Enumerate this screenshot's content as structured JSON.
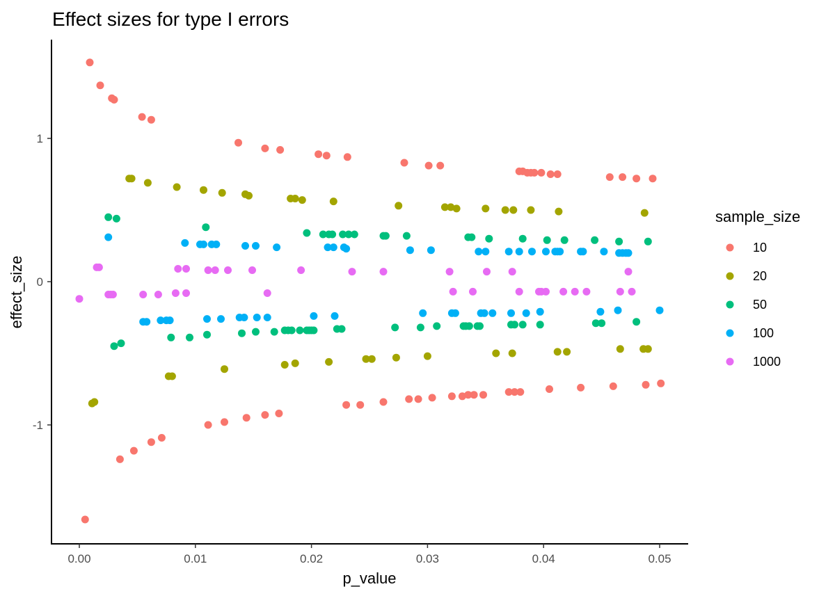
{
  "chart_data": {
    "type": "scatter",
    "title": "Effect sizes for type I errors",
    "xlabel": "p_value",
    "ylabel": "effect_size",
    "xlim": [
      0,
      0.05
    ],
    "ylim": [
      -1.6,
      1.55
    ],
    "x_ticks": [
      0.0,
      0.01,
      0.02,
      0.03,
      0.04,
      0.05
    ],
    "x_tick_labels": [
      "0.00",
      "0.01",
      "0.02",
      "0.03",
      "0.04",
      "0.05"
    ],
    "y_ticks": [
      -1,
      0,
      1
    ],
    "y_tick_labels": [
      "-1",
      "0",
      "1"
    ],
    "grid": false,
    "legend": {
      "title": "sample_size",
      "position": "right"
    },
    "series": [
      {
        "name": "10",
        "color": "#F8766D",
        "points": [
          [
            0.0009,
            1.53
          ],
          [
            0.0018,
            1.37
          ],
          [
            0.0028,
            1.28
          ],
          [
            0.003,
            1.27
          ],
          [
            0.0054,
            1.15
          ],
          [
            0.0062,
            1.13
          ],
          [
            0.0137,
            0.97
          ],
          [
            0.016,
            0.93
          ],
          [
            0.0173,
            0.92
          ],
          [
            0.0206,
            0.89
          ],
          [
            0.0213,
            0.88
          ],
          [
            0.0231,
            0.87
          ],
          [
            0.028,
            0.83
          ],
          [
            0.0301,
            0.81
          ],
          [
            0.0311,
            0.81
          ],
          [
            0.0379,
            0.77
          ],
          [
            0.0382,
            0.77
          ],
          [
            0.0386,
            0.76
          ],
          [
            0.0389,
            0.76
          ],
          [
            0.0392,
            0.76
          ],
          [
            0.0398,
            0.76
          ],
          [
            0.0406,
            0.75
          ],
          [
            0.0412,
            0.75
          ],
          [
            0.0457,
            0.73
          ],
          [
            0.0468,
            0.73
          ],
          [
            0.048,
            0.72
          ],
          [
            0.0494,
            0.72
          ],
          [
            0.0005,
            -1.66
          ],
          [
            0.0035,
            -1.24
          ],
          [
            0.0047,
            -1.18
          ],
          [
            0.0062,
            -1.12
          ],
          [
            0.0071,
            -1.09
          ],
          [
            0.0111,
            -1.0
          ],
          [
            0.0125,
            -0.98
          ],
          [
            0.0144,
            -0.95
          ],
          [
            0.016,
            -0.93
          ],
          [
            0.0172,
            -0.92
          ],
          [
            0.023,
            -0.86
          ],
          [
            0.0242,
            -0.86
          ],
          [
            0.0262,
            -0.84
          ],
          [
            0.0284,
            -0.82
          ],
          [
            0.0292,
            -0.82
          ],
          [
            0.0304,
            -0.81
          ],
          [
            0.0321,
            -0.8
          ],
          [
            0.033,
            -0.8
          ],
          [
            0.0335,
            -0.79
          ],
          [
            0.034,
            -0.79
          ],
          [
            0.0348,
            -0.79
          ],
          [
            0.037,
            -0.77
          ],
          [
            0.0375,
            -0.77
          ],
          [
            0.038,
            -0.77
          ],
          [
            0.0405,
            -0.75
          ],
          [
            0.0432,
            -0.74
          ],
          [
            0.046,
            -0.73
          ],
          [
            0.0488,
            -0.72
          ],
          [
            0.0501,
            -0.71
          ]
        ]
      },
      {
        "name": "20",
        "color": "#A3A500",
        "points": [
          [
            0.0043,
            0.72
          ],
          [
            0.0045,
            0.72
          ],
          [
            0.0059,
            0.69
          ],
          [
            0.0084,
            0.66
          ],
          [
            0.0107,
            0.64
          ],
          [
            0.0123,
            0.62
          ],
          [
            0.0143,
            0.61
          ],
          [
            0.0146,
            0.6
          ],
          [
            0.0182,
            0.58
          ],
          [
            0.0186,
            0.58
          ],
          [
            0.0192,
            0.57
          ],
          [
            0.0219,
            0.56
          ],
          [
            0.0275,
            0.53
          ],
          [
            0.0315,
            0.52
          ],
          [
            0.032,
            0.52
          ],
          [
            0.0325,
            0.51
          ],
          [
            0.035,
            0.51
          ],
          [
            0.0367,
            0.5
          ],
          [
            0.0374,
            0.5
          ],
          [
            0.0389,
            0.5
          ],
          [
            0.0413,
            0.49
          ],
          [
            0.0487,
            0.48
          ],
          [
            0.0011,
            -0.85
          ],
          [
            0.0013,
            -0.84
          ],
          [
            0.0077,
            -0.66
          ],
          [
            0.008,
            -0.66
          ],
          [
            0.0125,
            -0.61
          ],
          [
            0.0177,
            -0.58
          ],
          [
            0.0186,
            -0.57
          ],
          [
            0.0215,
            -0.56
          ],
          [
            0.0247,
            -0.54
          ],
          [
            0.0252,
            -0.54
          ],
          [
            0.0273,
            -0.53
          ],
          [
            0.03,
            -0.52
          ],
          [
            0.0359,
            -0.5
          ],
          [
            0.0373,
            -0.5
          ],
          [
            0.0412,
            -0.49
          ],
          [
            0.042,
            -0.49
          ],
          [
            0.0466,
            -0.47
          ],
          [
            0.0486,
            -0.47
          ],
          [
            0.049,
            -0.47
          ]
        ]
      },
      {
        "name": "50",
        "color": "#00BF7D",
        "points": [
          [
            0.0025,
            0.45
          ],
          [
            0.0032,
            0.44
          ],
          [
            0.0109,
            0.38
          ],
          [
            0.0196,
            0.34
          ],
          [
            0.021,
            0.33
          ],
          [
            0.0215,
            0.33
          ],
          [
            0.0218,
            0.33
          ],
          [
            0.0227,
            0.33
          ],
          [
            0.0232,
            0.33
          ],
          [
            0.0237,
            0.33
          ],
          [
            0.0262,
            0.32
          ],
          [
            0.0264,
            0.32
          ],
          [
            0.0282,
            0.32
          ],
          [
            0.0335,
            0.31
          ],
          [
            0.0338,
            0.31
          ],
          [
            0.0353,
            0.3
          ],
          [
            0.0382,
            0.3
          ],
          [
            0.0403,
            0.29
          ],
          [
            0.0418,
            0.29
          ],
          [
            0.0444,
            0.29
          ],
          [
            0.0465,
            0.28
          ],
          [
            0.049,
            0.28
          ],
          [
            0.003,
            -0.45
          ],
          [
            0.0036,
            -0.43
          ],
          [
            0.0079,
            -0.39
          ],
          [
            0.0095,
            -0.39
          ],
          [
            0.011,
            -0.37
          ],
          [
            0.014,
            -0.36
          ],
          [
            0.0152,
            -0.35
          ],
          [
            0.0168,
            -0.35
          ],
          [
            0.0177,
            -0.34
          ],
          [
            0.018,
            -0.34
          ],
          [
            0.0183,
            -0.34
          ],
          [
            0.019,
            -0.34
          ],
          [
            0.0196,
            -0.34
          ],
          [
            0.0198,
            -0.34
          ],
          [
            0.02,
            -0.34
          ],
          [
            0.0202,
            -0.34
          ],
          [
            0.0222,
            -0.33
          ],
          [
            0.0226,
            -0.33
          ],
          [
            0.0272,
            -0.32
          ],
          [
            0.0294,
            -0.32
          ],
          [
            0.0308,
            -0.31
          ],
          [
            0.0331,
            -0.31
          ],
          [
            0.0333,
            -0.31
          ],
          [
            0.0336,
            -0.31
          ],
          [
            0.0343,
            -0.31
          ],
          [
            0.0345,
            -0.31
          ],
          [
            0.0372,
            -0.3
          ],
          [
            0.0375,
            -0.3
          ],
          [
            0.0382,
            -0.3
          ],
          [
            0.0397,
            -0.3
          ],
          [
            0.0445,
            -0.29
          ],
          [
            0.045,
            -0.29
          ],
          [
            0.048,
            -0.28
          ]
        ]
      },
      {
        "name": "100",
        "color": "#00B0F6",
        "points": [
          [
            0.0025,
            0.31
          ],
          [
            0.0091,
            0.27
          ],
          [
            0.0104,
            0.26
          ],
          [
            0.0107,
            0.26
          ],
          [
            0.0114,
            0.26
          ],
          [
            0.0118,
            0.26
          ],
          [
            0.0143,
            0.25
          ],
          [
            0.0152,
            0.25
          ],
          [
            0.017,
            0.24
          ],
          [
            0.0214,
            0.24
          ],
          [
            0.0219,
            0.24
          ],
          [
            0.0228,
            0.24
          ],
          [
            0.023,
            0.23
          ],
          [
            0.0285,
            0.22
          ],
          [
            0.0303,
            0.22
          ],
          [
            0.0344,
            0.21
          ],
          [
            0.035,
            0.21
          ],
          [
            0.037,
            0.21
          ],
          [
            0.0379,
            0.21
          ],
          [
            0.039,
            0.21
          ],
          [
            0.0402,
            0.21
          ],
          [
            0.041,
            0.21
          ],
          [
            0.0412,
            0.21
          ],
          [
            0.0414,
            0.21
          ],
          [
            0.0432,
            0.21
          ],
          [
            0.0434,
            0.21
          ],
          [
            0.0452,
            0.21
          ],
          [
            0.0465,
            0.2
          ],
          [
            0.0468,
            0.2
          ],
          [
            0.0471,
            0.2
          ],
          [
            0.0473,
            0.2
          ],
          [
            0.0055,
            -0.28
          ],
          [
            0.0058,
            -0.28
          ],
          [
            0.007,
            -0.27
          ],
          [
            0.0075,
            -0.27
          ],
          [
            0.0078,
            -0.27
          ],
          [
            0.011,
            -0.26
          ],
          [
            0.0122,
            -0.26
          ],
          [
            0.0138,
            -0.25
          ],
          [
            0.0142,
            -0.25
          ],
          [
            0.0153,
            -0.25
          ],
          [
            0.0162,
            -0.25
          ],
          [
            0.0202,
            -0.24
          ],
          [
            0.022,
            -0.24
          ],
          [
            0.0296,
            -0.22
          ],
          [
            0.0321,
            -0.22
          ],
          [
            0.0324,
            -0.22
          ],
          [
            0.0346,
            -0.22
          ],
          [
            0.0349,
            -0.22
          ],
          [
            0.0356,
            -0.22
          ],
          [
            0.0372,
            -0.22
          ],
          [
            0.0385,
            -0.22
          ],
          [
            0.0397,
            -0.21
          ],
          [
            0.0449,
            -0.21
          ],
          [
            0.0464,
            -0.2
          ],
          [
            0.05,
            -0.2
          ]
        ]
      },
      {
        "name": "1000",
        "color": "#E76BF3",
        "points": [
          [
            0.0015,
            0.1
          ],
          [
            0.0017,
            0.1
          ],
          [
            0.0085,
            0.09
          ],
          [
            0.0092,
            0.09
          ],
          [
            0.0111,
            0.08
          ],
          [
            0.0117,
            0.08
          ],
          [
            0.0128,
            0.08
          ],
          [
            0.0149,
            0.08
          ],
          [
            0.0191,
            0.08
          ],
          [
            0.0235,
            0.07
          ],
          [
            0.0262,
            0.07
          ],
          [
            0.0319,
            0.07
          ],
          [
            0.0351,
            0.07
          ],
          [
            0.0373,
            0.07
          ],
          [
            0.0473,
            0.07
          ],
          [
            0.0,
            -0.12
          ],
          [
            0.0025,
            -0.09
          ],
          [
            0.0027,
            -0.09
          ],
          [
            0.0029,
            -0.09
          ],
          [
            0.0055,
            -0.09
          ],
          [
            0.0068,
            -0.09
          ],
          [
            0.0083,
            -0.08
          ],
          [
            0.0092,
            -0.08
          ],
          [
            0.0162,
            -0.08
          ],
          [
            0.0322,
            -0.07
          ],
          [
            0.0339,
            -0.07
          ],
          [
            0.0379,
            -0.07
          ],
          [
            0.0396,
            -0.07
          ],
          [
            0.0398,
            -0.07
          ],
          [
            0.0402,
            -0.07
          ],
          [
            0.0417,
            -0.07
          ],
          [
            0.0427,
            -0.07
          ],
          [
            0.0437,
            -0.07
          ],
          [
            0.0466,
            -0.07
          ],
          [
            0.0476,
            -0.07
          ]
        ]
      }
    ]
  }
}
